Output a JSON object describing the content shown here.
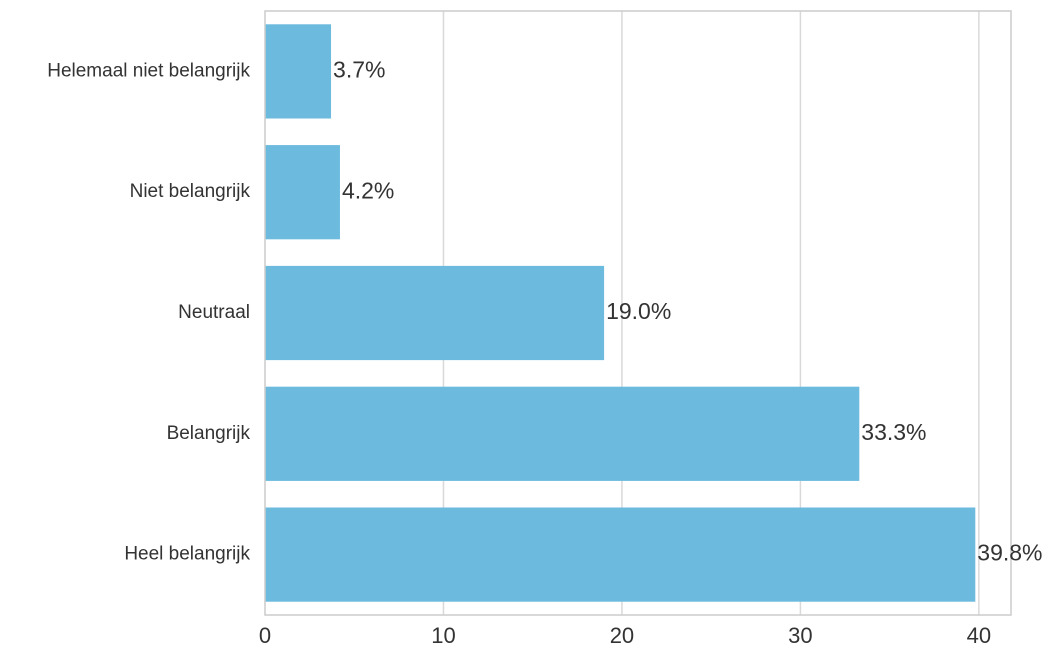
{
  "chart_data": {
    "type": "bar",
    "orientation": "horizontal",
    "categories": [
      "Helemaal niet belangrijk",
      "Niet belangrijk",
      "Neutraal",
      "Belangrijk",
      "Heel belangrijk"
    ],
    "values": [
      3.7,
      4.2,
      19.0,
      33.3,
      39.8
    ],
    "data_labels": [
      "3.7%",
      "4.2%",
      "19.0%",
      "33.3%",
      "39.8%"
    ],
    "xticks": [
      0,
      10,
      20,
      30,
      40
    ],
    "xlim": [
      0,
      41.8
    ],
    "grid": "vertical",
    "bar_color": "#6cbbdf",
    "grid_color": "#d9d9d9",
    "axis_color": "#cccccc"
  }
}
